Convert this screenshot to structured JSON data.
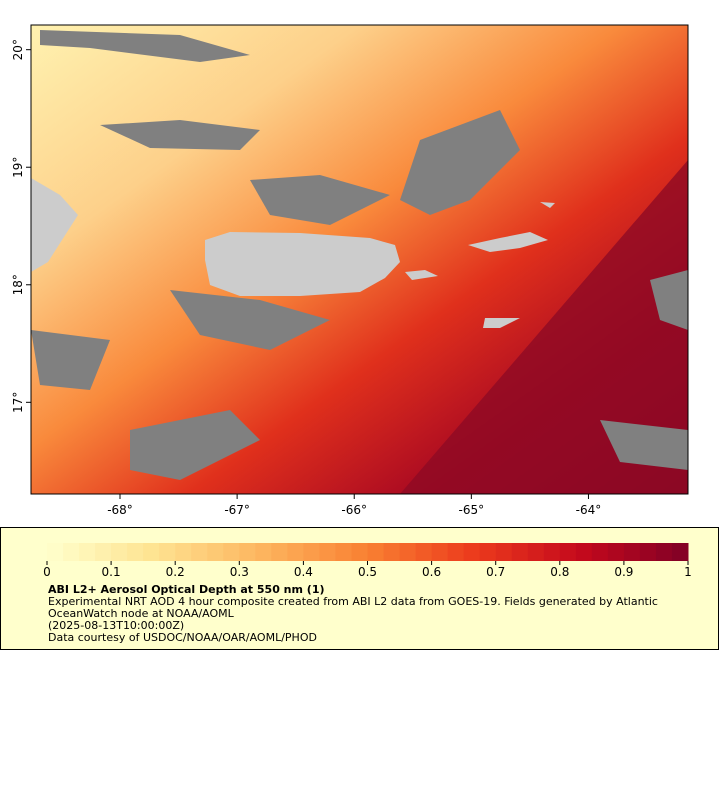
{
  "map": {
    "xlim": [
      -68.76,
      -63.15
    ],
    "ylim": [
      16.22,
      20.21
    ],
    "xticks": [
      {
        "value": -68,
        "label": "-68°"
      },
      {
        "value": -67,
        "label": "-67°"
      },
      {
        "value": -66,
        "label": "-66°"
      },
      {
        "value": -65,
        "label": "-65°"
      },
      {
        "value": -64,
        "label": "-64°"
      }
    ],
    "yticks": [
      {
        "value": 17,
        "label": "17°"
      },
      {
        "value": 18,
        "label": "18°"
      },
      {
        "value": 19,
        "label": "19°"
      },
      {
        "value": 20,
        "label": "20°"
      }
    ]
  },
  "colorbar": {
    "lim": [
      0,
      1
    ],
    "ticks": [
      0,
      0.1,
      0.2,
      0.3,
      0.4,
      0.5,
      0.6,
      0.7,
      0.8,
      0.9,
      1
    ],
    "colors": [
      "#ffffcc",
      "#fee391",
      "#fdb55f",
      "#f98032",
      "#ec3a1c",
      "#c4091c",
      "#800026"
    ]
  },
  "legend": {
    "title": "ABI L2+ Aerosol Optical Depth at 550 nm (1)",
    "lines": [
      "Experimental NRT AOD 4 hour composite created from ABI L2 data from GOES-19. Fields generated by Atlantic",
      "OceanWatch node at NOAA/AOML",
      "(2025-08-13T10:00:00Z)",
      "Data courtesy of USDOC/NOAA/OAR/AOML/PHOD"
    ]
  }
}
